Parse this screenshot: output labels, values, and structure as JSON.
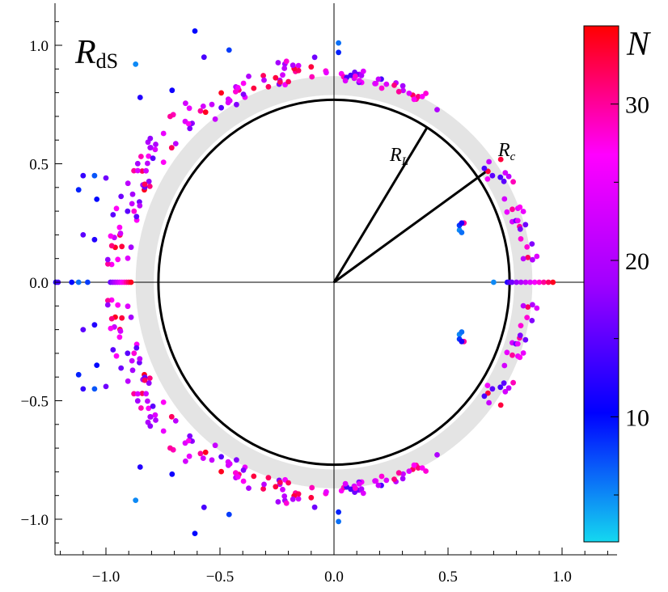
{
  "chart_data": {
    "type": "scatter",
    "title": "R",
    "title_subscript": "dS",
    "xlim": [
      -1.23,
      1.23
    ],
    "ylim": [
      -1.19,
      1.19
    ],
    "x_ticks": [
      {
        "value": -1.0,
        "label": "−1.0"
      },
      {
        "value": -0.5,
        "label": "−0.5"
      },
      {
        "value": 0.0,
        "label": "0.0"
      },
      {
        "value": 0.5,
        "label": "0.5"
      },
      {
        "value": 1.0,
        "label": "1.0"
      }
    ],
    "y_ticks": [
      {
        "value": 1.0,
        "label": "1.0"
      },
      {
        "value": 0.5,
        "label": "0.5"
      },
      {
        "value": 0.0,
        "label": "0.0"
      },
      {
        "value": -0.5,
        "label": "−0.5"
      },
      {
        "value": -1.0,
        "label": "−1.0"
      }
    ],
    "circles": {
      "R_L": 0.77,
      "R_c": 0.83,
      "band": [
        0.79,
        0.87
      ]
    },
    "radius_labels": [
      {
        "main": "R",
        "sub": "L",
        "angle_deg": 58
      },
      {
        "main": "R",
        "sub": "c",
        "angle_deg": 35
      }
    ],
    "colorbar": {
      "label": "N",
      "range": [
        2,
        35
      ],
      "ticks": [
        {
          "value": 10,
          "label": "10"
        },
        {
          "value": 20,
          "label": "20"
        },
        {
          "value": 30,
          "label": "30"
        }
      ],
      "colors": [
        "#14d8f0",
        "#0000ff",
        "#a000ff",
        "#ff00ff",
        "#ff0000"
      ]
    },
    "band_color": "#e4e4e4",
    "isolated_points": [
      [
        0.02,
        1.01,
        6
      ],
      [
        0.02,
        0.97,
        9
      ],
      [
        -0.61,
        1.06,
        10
      ],
      [
        -0.57,
        0.95,
        14
      ],
      [
        -0.46,
        0.98,
        8
      ],
      [
        -0.87,
        0.92,
        5
      ],
      [
        -0.85,
        0.78,
        12
      ],
      [
        -0.71,
        0.81,
        11
      ],
      [
        -1.1,
        0.45,
        13
      ],
      [
        -1.05,
        0.45,
        7
      ],
      [
        -1.12,
        0.39,
        9
      ],
      [
        -1.0,
        0.44,
        16
      ],
      [
        -1.04,
        0.35,
        10
      ],
      [
        -1.05,
        0.18,
        12
      ],
      [
        -1.1,
        0.2,
        15
      ],
      [
        -1.22,
        0.0,
        12
      ],
      [
        -1.21,
        0.0,
        14
      ],
      [
        -1.15,
        0.0,
        10
      ],
      [
        -1.12,
        0.0,
        6
      ],
      [
        -1.08,
        0.0,
        8
      ],
      [
        0.7,
        0.0,
        5
      ],
      [
        0.02,
        -1.01,
        6
      ],
      [
        0.02,
        -0.97,
        9
      ],
      [
        -0.61,
        -1.06,
        10
      ],
      [
        -0.57,
        -0.95,
        14
      ],
      [
        -0.46,
        -0.98,
        8
      ],
      [
        -0.87,
        -0.92,
        5
      ],
      [
        -0.85,
        -0.78,
        12
      ],
      [
        -0.71,
        -0.81,
        11
      ],
      [
        -1.1,
        -0.45,
        13
      ],
      [
        -1.05,
        -0.45,
        7
      ],
      [
        -1.12,
        -0.39,
        9
      ],
      [
        -1.0,
        -0.44,
        16
      ],
      [
        -1.04,
        -0.35,
        10
      ],
      [
        -1.05,
        -0.18,
        12
      ],
      [
        -1.1,
        -0.2,
        15
      ],
      [
        0.55,
        0.22,
        5
      ],
      [
        0.55,
        0.24,
        8
      ],
      [
        0.56,
        0.21,
        6
      ],
      [
        0.57,
        0.25,
        30
      ],
      [
        0.56,
        0.25,
        12
      ],
      [
        0.55,
        -0.22,
        5
      ],
      [
        0.55,
        -0.24,
        8
      ],
      [
        0.56,
        -0.21,
        6
      ],
      [
        0.57,
        -0.25,
        30
      ],
      [
        0.56,
        -0.25,
        12
      ]
    ]
  }
}
